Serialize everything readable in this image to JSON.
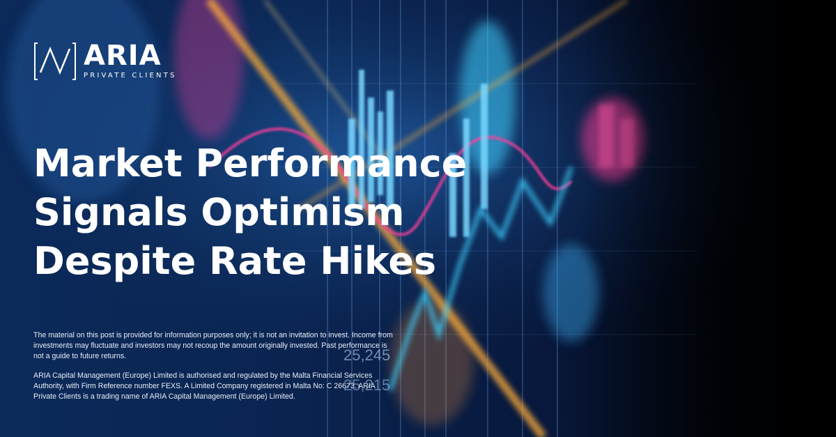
{
  "brand": {
    "name": "ARIA",
    "subtitle": "PRIVATE CLIENTS"
  },
  "headline": {
    "line1": "Market Performance",
    "line2": "Signals Optimism",
    "line3": "Despite Rate Hikes"
  },
  "disclaimer": {
    "paragraph1": "The material on this post is provided for information purposes only; it is not an invitation to invest. Income from investments may fluctuate and investors may not recoup the amount originally invested. Past performance is not a guide to future returns.",
    "paragraph2": "ARIA Capital Management (Europe) Limited is authorised and regulated by the Malta Financial Services Authority, with Firm Reference number FEXS. A Limited Company registered in Malta No: C 26673. ARIA Private Clients is a trading name of ARIA Capital Management (Europe) Limited."
  },
  "background": {
    "numbers": [
      "25,245",
      "25,215"
    ]
  },
  "colors": {
    "background_dark": "#061536",
    "accent_cyan": "#3fd2ff",
    "accent_magenta": "#ff3f9a",
    "accent_orange": "#ffae3a",
    "text": "#ffffff"
  }
}
